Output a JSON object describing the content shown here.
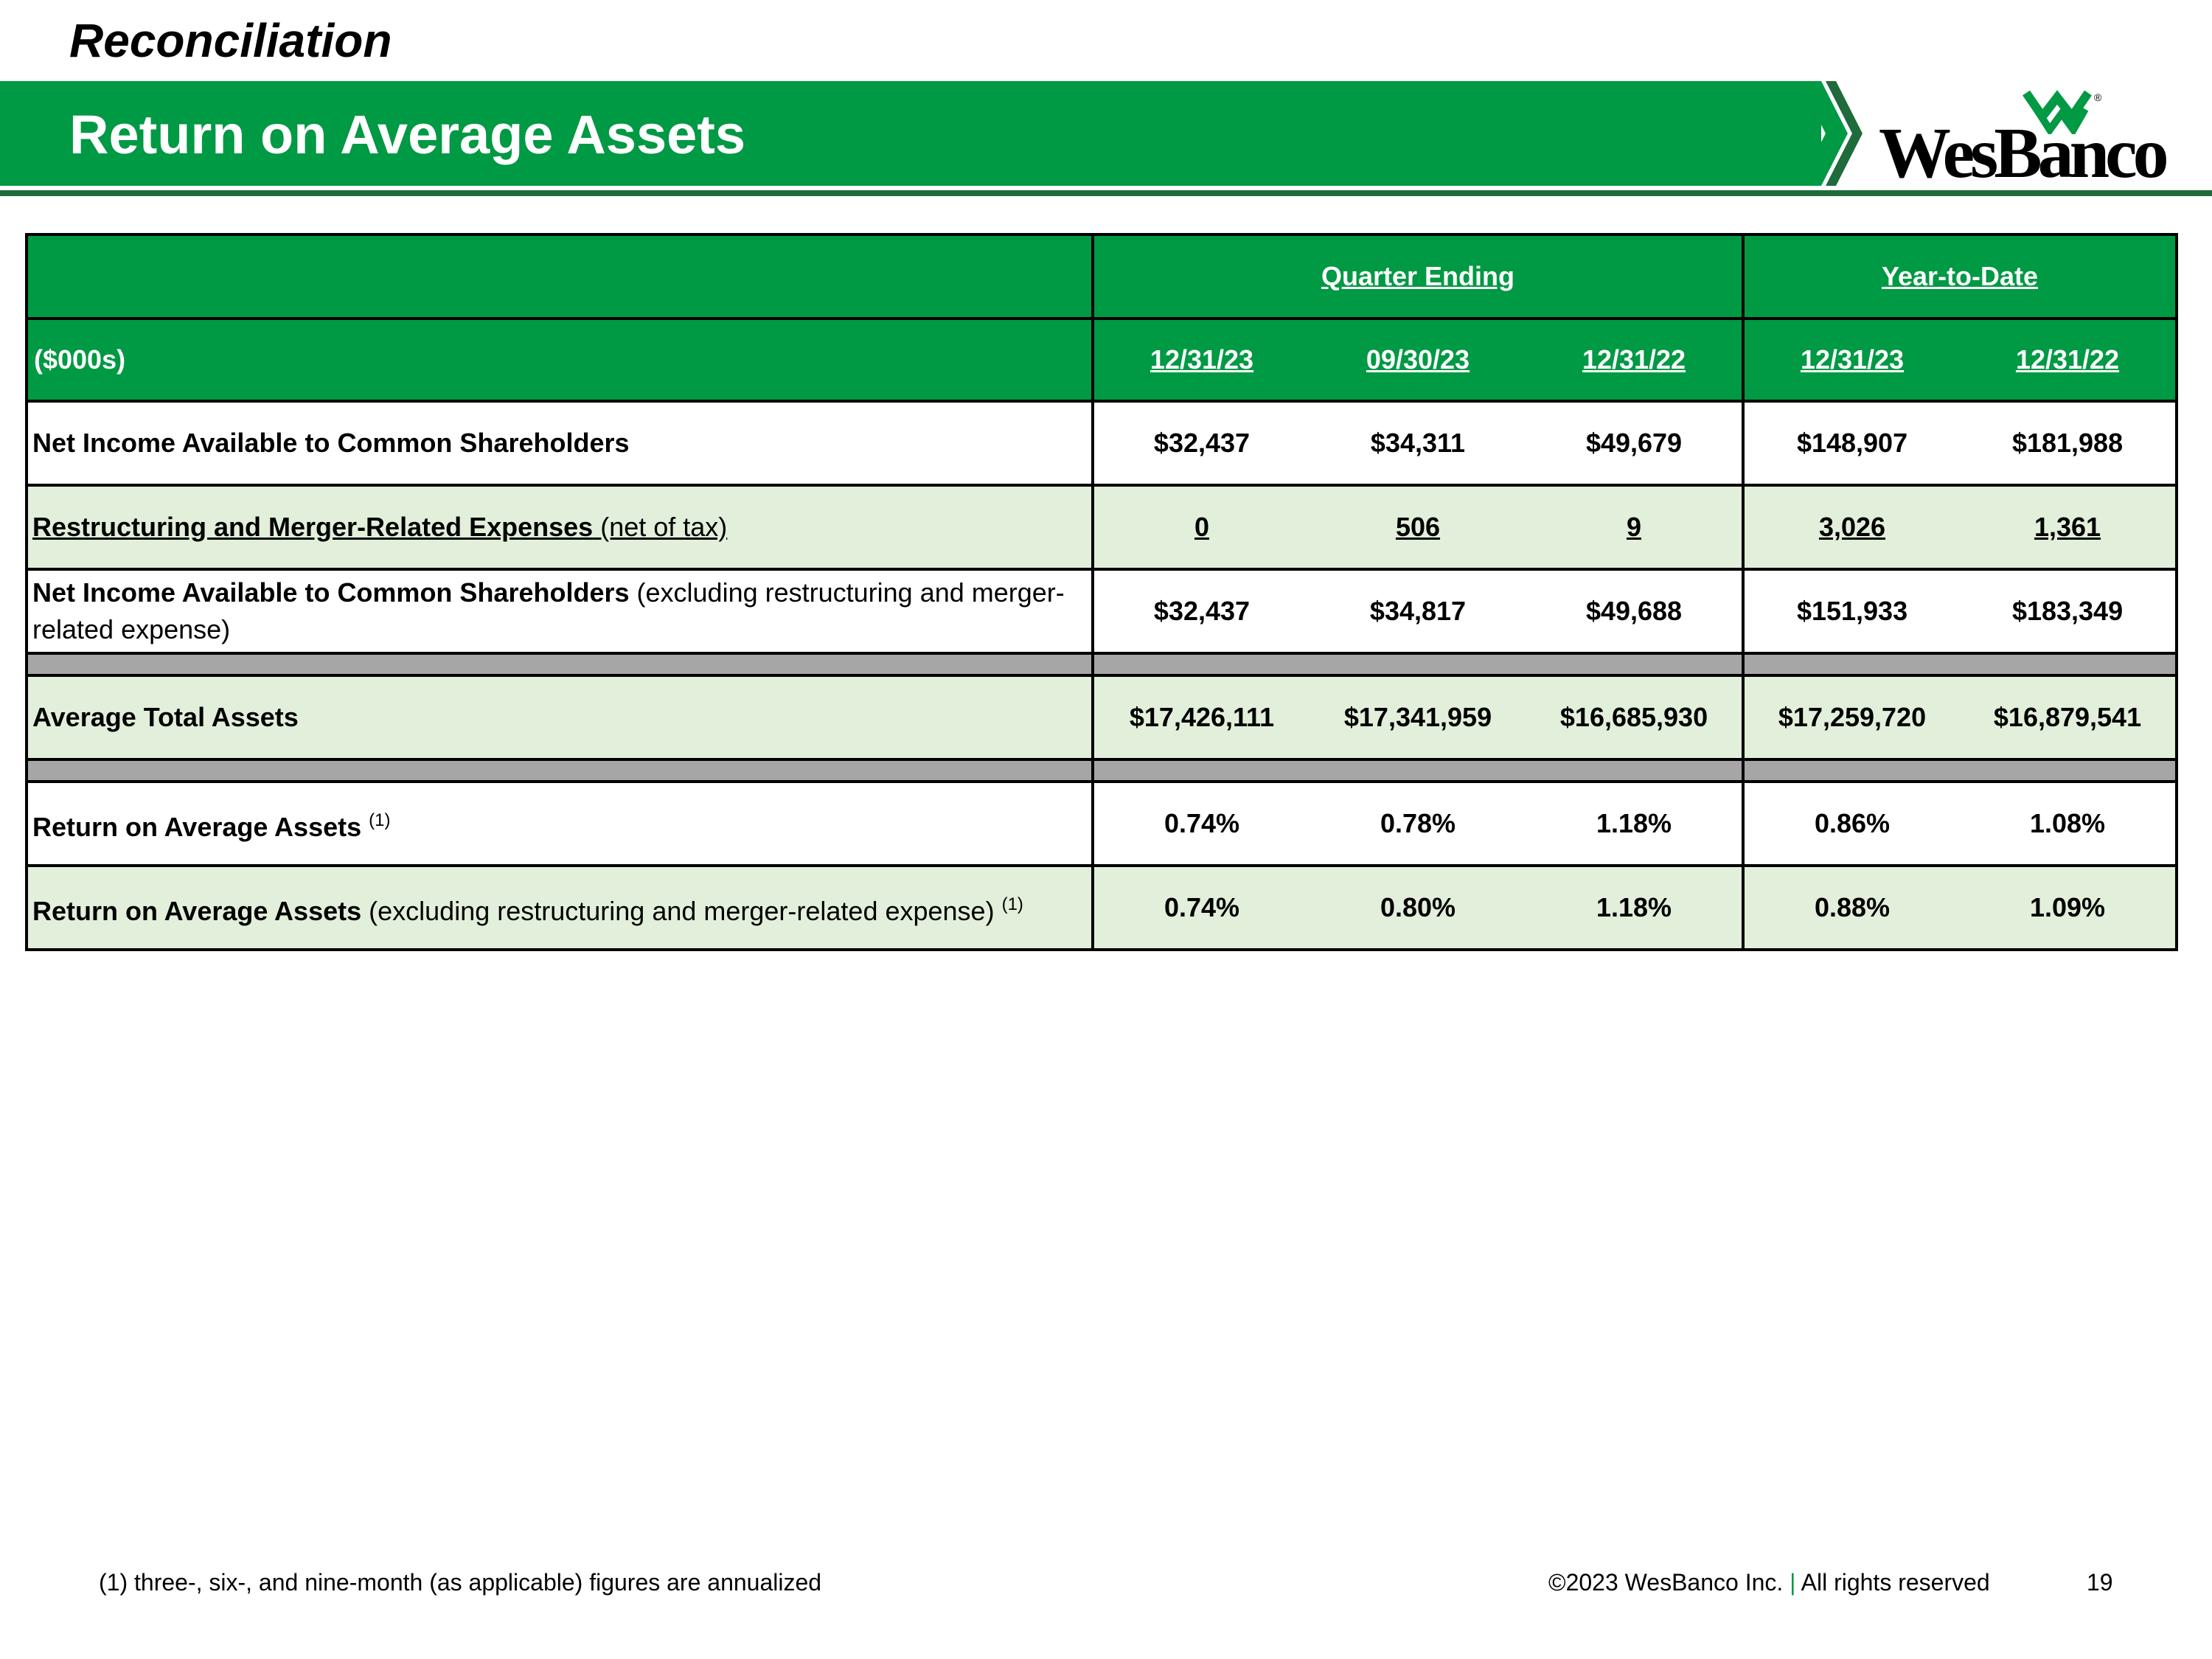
{
  "header": {
    "section": "Reconciliation",
    "title": "Return on Average Assets",
    "logo_text": "WesBanco",
    "brand_color": "#009944"
  },
  "table": {
    "units_label": "($000s)",
    "groups": [
      "Quarter Ending",
      "Year-to-Date"
    ],
    "dates": [
      "12/31/23",
      "09/30/23",
      "12/31/22",
      "12/31/23",
      "12/31/22"
    ],
    "rows": [
      {
        "label_bold": "Net Income Available to Common Shareholders",
        "label_rest": "",
        "values": [
          "$32,437",
          "$34,311",
          "$49,679",
          "$148,907",
          "$181,988"
        ]
      },
      {
        "label_bold": "Restructuring and Merger-Related Expenses",
        "label_rest": " (net of tax)",
        "values": [
          "0",
          "506",
          "9",
          "3,026",
          "1,361"
        ]
      },
      {
        "label_bold": "Net Income Available to Common Shareholders",
        "label_rest": " (excluding restructuring and merger-related expense)",
        "values": [
          "$32,437",
          "$34,817",
          "$49,688",
          "$151,933",
          "$183,349"
        ]
      },
      {
        "label_bold": "Average Total Assets",
        "label_rest": "",
        "values": [
          "$17,426,111",
          "$17,341,959",
          "$16,685,930",
          "$17,259,720",
          "$16,879,541"
        ]
      },
      {
        "label_bold": "Return on Average Assets",
        "label_rest": "",
        "sup": "(1)",
        "values": [
          "0.74%",
          "0.78%",
          "1.18%",
          "0.86%",
          "1.08%"
        ]
      },
      {
        "label_bold": "Return on Average Assets",
        "label_rest": " (excluding restructuring and merger-related expense)",
        "sup": "(1)",
        "values": [
          "0.74%",
          "0.80%",
          "1.18%",
          "0.88%",
          "1.09%"
        ]
      }
    ]
  },
  "footer": {
    "footnote": "(1) three-, six-, and nine-month (as applicable) figures are annualized",
    "copyright": "©2023 WesBanco Inc.",
    "separator": "|",
    "rights": "All rights reserved",
    "page": "19"
  }
}
